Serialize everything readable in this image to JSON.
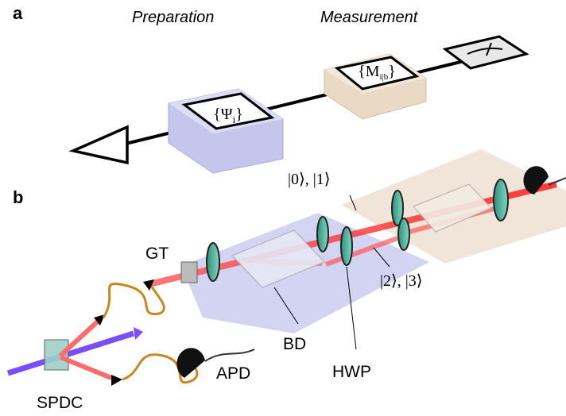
{
  "panels": [
    {
      "label": "a",
      "headings": [
        "Preparation",
        "Measurement"
      ],
      "boxes": [
        "{Ψ",
        "i",
        "}",
        "{M",
        "i|b",
        "}"
      ]
    },
    {
      "label": "b",
      "states": [
        "|0⟩, |1⟩",
        "|2⟩, |3⟩"
      ],
      "components": [
        "GT",
        "BD",
        "HWP",
        "APD",
        "SPDC"
      ]
    }
  ]
}
